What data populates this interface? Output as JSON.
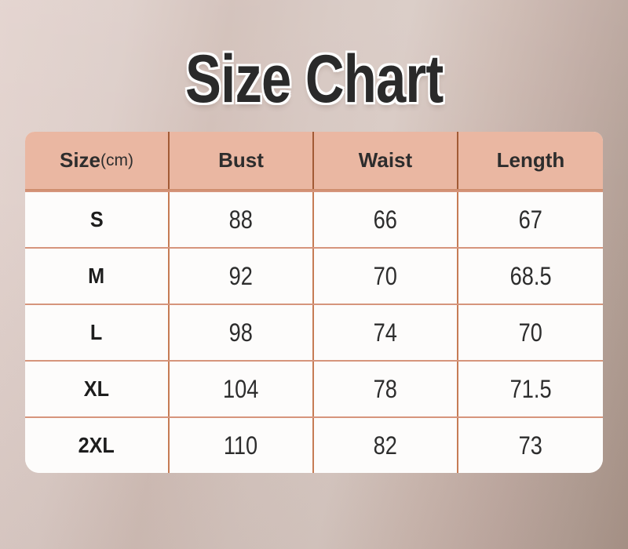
{
  "chart_data": {
    "type": "table",
    "title": "Size Chart",
    "unit_note": "(cm)",
    "columns": [
      {
        "label": "Size",
        "unit": "(cm)"
      },
      {
        "label": "Bust"
      },
      {
        "label": "Waist"
      },
      {
        "label": "Length"
      }
    ],
    "rows": [
      {
        "size": "S",
        "bust": "88",
        "waist": "66",
        "length": "67"
      },
      {
        "size": "M",
        "bust": "92",
        "waist": "70",
        "length": "68.5"
      },
      {
        "size": "L",
        "bust": "98",
        "waist": "74",
        "length": "70"
      },
      {
        "size": "XL",
        "bust": "104",
        "waist": "78",
        "length": "71.5"
      },
      {
        "size": "2XL",
        "bust": "110",
        "waist": "82",
        "length": "73"
      }
    ]
  },
  "colors": {
    "title_text": "#2a2a2a",
    "title_outline": "#ffffff",
    "header_bg": "#eab7a2",
    "header_divider": "#a25a35",
    "body_divider_vertical": "#c67c55",
    "body_divider_horizontal": "#d6957c",
    "cell_bg": "#fdfcfb",
    "background_light": "#e3d3ce",
    "background_dark": "#a9958a"
  }
}
